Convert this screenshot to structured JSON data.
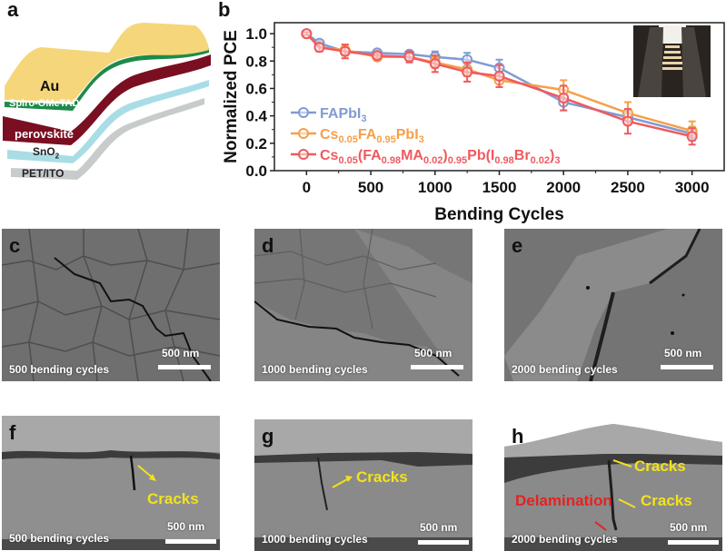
{
  "panels": {
    "a": {
      "letter": "a",
      "layers": [
        {
          "name": "Au",
          "color": "#f5d67a"
        },
        {
          "name": "Spiro-OMeTAD",
          "color": "#1e8a4a"
        },
        {
          "name": "perovskite",
          "color": "#7a0f22"
        },
        {
          "name": "SnO2",
          "color": "#a9dde6"
        },
        {
          "name": "PET/ITO",
          "color": "#c8cbcc"
        }
      ],
      "labels": {
        "au": "Au",
        "spiro": "Spiro-OMeTAD",
        "perovskite": "perovskite",
        "sno2_main": "SnO",
        "sno2_sub": "2",
        "petito": "PET/ITO"
      }
    },
    "b": {
      "letter": "b"
    },
    "c": {
      "letter": "c",
      "caption": "500 bending cycles",
      "scale": "500 nm"
    },
    "d": {
      "letter": "d",
      "caption": "1000 bending cycles",
      "scale": "500 nm"
    },
    "e": {
      "letter": "e",
      "caption": "2000 bending cycles",
      "scale": "500 nm"
    },
    "f": {
      "letter": "f",
      "caption": "500 bending cycles",
      "scale": "500 nm",
      "annotations": [
        "Cracks"
      ]
    },
    "g": {
      "letter": "g",
      "caption": "1000 bending cycles",
      "scale": "500 nm",
      "annotations": [
        "Cracks"
      ]
    },
    "h": {
      "letter": "h",
      "caption": "2000 bending cycles",
      "scale": "500 nm",
      "annotations": [
        "Cracks",
        "Cracks",
        "Delamination"
      ]
    }
  },
  "colors": {
    "crack_annotation": "#f2e21c",
    "delamination_annotation": "#e8211f"
  },
  "chart_data": {
    "type": "line",
    "title": "",
    "xlabel": "Bending Cycles",
    "ylabel": "Normalized PCE",
    "xlim": [
      -250,
      3250
    ],
    "ylim": [
      0.0,
      1.08
    ],
    "xticks": [
      0,
      500,
      1000,
      1500,
      2000,
      2500,
      3000
    ],
    "yticks": [
      0.0,
      0.2,
      0.4,
      0.6,
      0.8,
      1.0
    ],
    "xtick_labels": [
      "0",
      "500",
      "1000",
      "1500",
      "2000",
      "2500",
      "3000"
    ],
    "ytick_labels": [
      "0.0",
      "0.2",
      "0.4",
      "0.6",
      "0.8",
      "1.0"
    ],
    "grid": false,
    "legend_position": "left-middle",
    "x": [
      0,
      100,
      300,
      550,
      800,
      1000,
      1250,
      1500,
      2000,
      2500,
      3000
    ],
    "series": [
      {
        "name": "FAPbI3",
        "legend_parts": [
          [
            "FAPbI",
            false
          ],
          [
            "3",
            true
          ]
        ],
        "color": "#7f9bd4",
        "values": [
          1.0,
          0.93,
          0.87,
          0.86,
          0.85,
          0.83,
          0.81,
          0.75,
          0.5,
          0.39,
          0.27
        ],
        "errors": [
          0.01,
          0.02,
          0.03,
          0.02,
          0.02,
          0.04,
          0.05,
          0.06,
          0.06,
          0.05,
          0.05
        ]
      },
      {
        "name": "Cs0.05FA0.95PbI3",
        "legend_parts": [
          [
            "Cs",
            false
          ],
          [
            "0.05",
            true
          ],
          [
            "FA",
            false
          ],
          [
            "0.95",
            true
          ],
          [
            "PbI",
            false
          ],
          [
            "3",
            true
          ]
        ],
        "color": "#f5a04a",
        "values": [
          1.0,
          0.9,
          0.88,
          0.83,
          0.83,
          0.79,
          0.74,
          0.66,
          0.59,
          0.42,
          0.29
        ],
        "errors": [
          0.01,
          0.03,
          0.04,
          0.02,
          0.03,
          0.04,
          0.05,
          0.05,
          0.07,
          0.08,
          0.07
        ]
      },
      {
        "name": "Cs0.05(FA0.98MA0.02)0.95Pb(I0.98Br0.02)3",
        "legend_parts": [
          [
            "Cs",
            false
          ],
          [
            "0.05",
            true
          ],
          [
            "(FA",
            false
          ],
          [
            "0.98",
            true
          ],
          [
            "MA",
            false
          ],
          [
            "0.02",
            true
          ],
          [
            ")",
            false
          ],
          [
            "0.95",
            true
          ],
          [
            "Pb(I",
            false
          ],
          [
            "0.98",
            true
          ],
          [
            "Br",
            false
          ],
          [
            "0.02",
            true
          ],
          [
            ")",
            false
          ],
          [
            "3",
            true
          ]
        ],
        "color": "#ef5a5f",
        "values": [
          1.0,
          0.9,
          0.87,
          0.84,
          0.83,
          0.78,
          0.72,
          0.69,
          0.53,
          0.36,
          0.25
        ],
        "errors": [
          0.01,
          0.03,
          0.05,
          0.02,
          0.04,
          0.06,
          0.07,
          0.08,
          0.09,
          0.09,
          0.06
        ]
      }
    ],
    "inset": "photo of bending test fixture"
  }
}
